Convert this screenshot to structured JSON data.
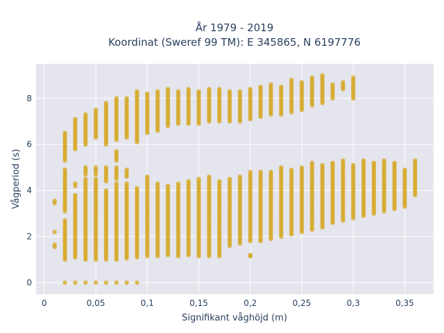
{
  "chart_data": {
    "type": "scatter",
    "title_line1": "År 1979 - 2019",
    "title_line2": "Koordinat (Sweref 99 TM): E 345865, N 6197776",
    "xlabel": "Signifikant våghöjd (m)",
    "ylabel": "Vågperiod (s)",
    "xlim": [
      -0.008,
      0.378
    ],
    "ylim": [
      -0.5,
      9.5
    ],
    "x_ticks": [
      0,
      0.05,
      0.1,
      0.15,
      0.2,
      0.25,
      0.3,
      0.35
    ],
    "x_tick_labels": [
      "0",
      "0,05",
      "0,1",
      "0,15",
      "0,2",
      "0,25",
      "0,3",
      "0,35"
    ],
    "y_ticks": [
      0,
      2,
      4,
      6,
      8
    ],
    "y_tick_labels": [
      "0",
      "2",
      "4",
      "6",
      "8"
    ],
    "grid": true,
    "marker_color": "#d4a51e",
    "plot_background": "#e5e5ee",
    "columns_note": "vertical runs of points: [x, y_start, y_end]",
    "runs": [
      [
        0.01,
        1.55,
        1.65
      ],
      [
        0.01,
        2.2,
        2.25
      ],
      [
        0.01,
        3.45,
        3.55
      ],
      [
        0.02,
        0.0,
        0.0
      ],
      [
        0.02,
        1.0,
        2.7
      ],
      [
        0.02,
        3.1,
        4.9
      ],
      [
        0.02,
        5.3,
        6.5
      ],
      [
        0.03,
        0.0,
        0.0
      ],
      [
        0.03,
        1.1,
        3.8
      ],
      [
        0.03,
        4.2,
        4.3
      ],
      [
        0.03,
        5.8,
        7.1
      ],
      [
        0.04,
        0.0,
        0.0
      ],
      [
        0.04,
        1.0,
        4.5
      ],
      [
        0.04,
        4.7,
        5.0
      ],
      [
        0.04,
        6.0,
        7.3
      ],
      [
        0.05,
        0.0,
        0.0
      ],
      [
        0.05,
        1.0,
        4.5
      ],
      [
        0.05,
        4.7,
        5.0
      ],
      [
        0.05,
        6.3,
        7.5
      ],
      [
        0.06,
        0.0,
        0.0
      ],
      [
        0.06,
        1.0,
        4.0
      ],
      [
        0.06,
        4.4,
        5.0
      ],
      [
        0.06,
        6.0,
        7.8
      ],
      [
        0.07,
        0.0,
        0.0
      ],
      [
        0.07,
        1.0,
        4.3
      ],
      [
        0.07,
        4.5,
        5.0
      ],
      [
        0.07,
        5.3,
        5.7
      ],
      [
        0.07,
        6.2,
        8.0
      ],
      [
        0.08,
        0.0,
        0.0
      ],
      [
        0.08,
        1.05,
        4.3
      ],
      [
        0.08,
        4.6,
        4.9
      ],
      [
        0.08,
        6.3,
        8.0
      ],
      [
        0.09,
        0.0,
        0.0
      ],
      [
        0.09,
        1.1,
        4.1
      ],
      [
        0.09,
        6.1,
        8.3
      ],
      [
        0.1,
        1.15,
        4.6
      ],
      [
        0.1,
        6.5,
        8.2
      ],
      [
        0.11,
        1.15,
        4.3
      ],
      [
        0.11,
        6.6,
        8.3
      ],
      [
        0.12,
        1.2,
        4.2
      ],
      [
        0.12,
        6.8,
        8.4
      ],
      [
        0.13,
        1.15,
        4.3
      ],
      [
        0.13,
        6.9,
        8.3
      ],
      [
        0.14,
        1.2,
        4.4
      ],
      [
        0.14,
        6.9,
        8.4
      ],
      [
        0.15,
        1.15,
        4.5
      ],
      [
        0.15,
        6.9,
        8.3
      ],
      [
        0.16,
        1.15,
        4.6
      ],
      [
        0.16,
        7.0,
        8.4
      ],
      [
        0.17,
        1.15,
        4.4
      ],
      [
        0.17,
        7.0,
        8.4
      ],
      [
        0.18,
        1.6,
        4.5
      ],
      [
        0.18,
        7.0,
        8.3
      ],
      [
        0.19,
        1.7,
        4.6
      ],
      [
        0.19,
        7.0,
        8.3
      ],
      [
        0.2,
        1.15,
        1.2
      ],
      [
        0.2,
        1.8,
        4.8
      ],
      [
        0.2,
        7.1,
        8.4
      ],
      [
        0.21,
        1.8,
        4.8
      ],
      [
        0.21,
        7.2,
        8.5
      ],
      [
        0.22,
        1.9,
        4.8
      ],
      [
        0.22,
        7.3,
        8.6
      ],
      [
        0.23,
        2.0,
        5.0
      ],
      [
        0.23,
        7.3,
        8.5
      ],
      [
        0.24,
        2.1,
        4.9
      ],
      [
        0.24,
        7.4,
        8.8
      ],
      [
        0.25,
        2.2,
        5.0
      ],
      [
        0.25,
        7.5,
        8.7
      ],
      [
        0.26,
        2.3,
        5.2
      ],
      [
        0.26,
        7.7,
        8.9
      ],
      [
        0.27,
        2.4,
        5.1
      ],
      [
        0.27,
        7.8,
        9.0
      ],
      [
        0.28,
        2.6,
        5.2
      ],
      [
        0.28,
        8.0,
        8.6
      ],
      [
        0.29,
        2.7,
        5.3
      ],
      [
        0.29,
        8.4,
        8.7
      ],
      [
        0.3,
        2.8,
        5.1
      ],
      [
        0.3,
        8.0,
        8.9
      ],
      [
        0.31,
        2.9,
        5.3
      ],
      [
        0.32,
        3.0,
        5.2
      ],
      [
        0.33,
        3.1,
        5.3
      ],
      [
        0.34,
        3.2,
        5.2
      ],
      [
        0.35,
        3.3,
        4.9
      ],
      [
        0.36,
        3.8,
        5.3
      ]
    ]
  }
}
